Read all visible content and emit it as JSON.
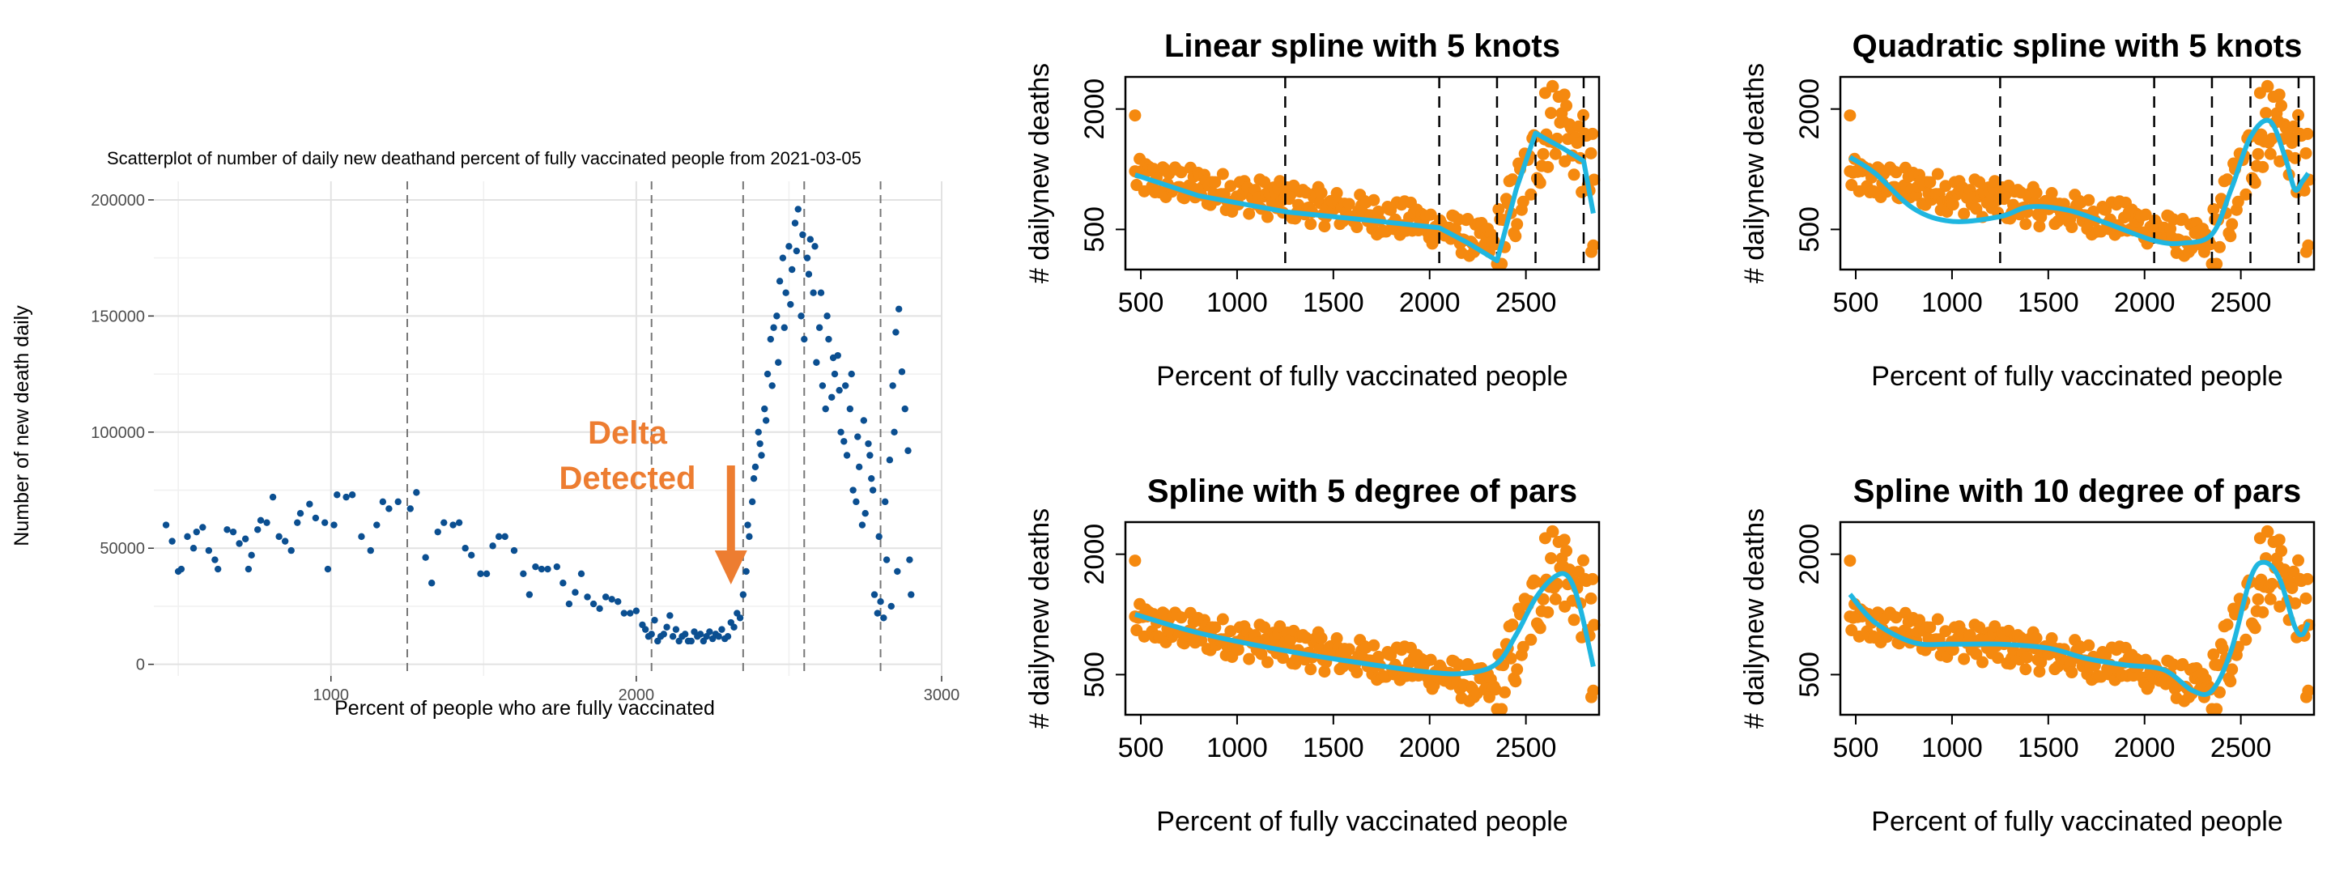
{
  "colors": {
    "scatter_point": "#0b4f91",
    "spline_point": "#f5890f",
    "spline_curve": "#1fb6e0",
    "annotation": "#ed7d31",
    "grid_major": "#e2e2e2",
    "grid_minor": "#f0f0f0",
    "knot_line": "#777777"
  },
  "annotation": {
    "line1": "Delta",
    "line2": "Detected",
    "arrow_x": 2310
  },
  "chart_data": [
    {
      "id": "scatter",
      "type": "scatter",
      "title": "Scatterplot of number of daily new deathand percent of  fully vaccinated people from 2021-03-05",
      "xlabel": "Percent of people who are fully vaccinated",
      "ylabel": "Number of new death daily",
      "xlim": [
        420,
        3000
      ],
      "ylim": [
        -5000,
        208000
      ],
      "xticks": [
        1000,
        2000,
        3000
      ],
      "xtick_labels": [
        "1000",
        "2000",
        "3000"
      ],
      "yticks": [
        0,
        50000,
        100000,
        150000,
        200000
      ],
      "ytick_labels": [
        "0",
        "50000",
        "100000",
        "150000",
        "200000"
      ],
      "grid": true,
      "knots": [
        1250,
        2050,
        2350,
        2550,
        2800
      ],
      "points": [
        [
          460,
          60000
        ],
        [
          480,
          53000
        ],
        [
          500,
          40000
        ],
        [
          510,
          41000
        ],
        [
          530,
          55000
        ],
        [
          550,
          50000
        ],
        [
          560,
          57000
        ],
        [
          580,
          59000
        ],
        [
          600,
          49000
        ],
        [
          620,
          45000
        ],
        [
          630,
          41000
        ],
        [
          660,
          58000
        ],
        [
          680,
          57000
        ],
        [
          700,
          52000
        ],
        [
          720,
          54000
        ],
        [
          730,
          41000
        ],
        [
          740,
          47000
        ],
        [
          760,
          58000
        ],
        [
          770,
          62000
        ],
        [
          790,
          61000
        ],
        [
          810,
          72000
        ],
        [
          830,
          55000
        ],
        [
          850,
          53000
        ],
        [
          870,
          49000
        ],
        [
          890,
          61000
        ],
        [
          900,
          65000
        ],
        [
          930,
          69000
        ],
        [
          950,
          63000
        ],
        [
          980,
          61000
        ],
        [
          990,
          41000
        ],
        [
          1010,
          60000
        ],
        [
          1020,
          73000
        ],
        [
          1050,
          72000
        ],
        [
          1070,
          73000
        ],
        [
          1100,
          55000
        ],
        [
          1130,
          49000
        ],
        [
          1150,
          60000
        ],
        [
          1170,
          70000
        ],
        [
          1190,
          67000
        ],
        [
          1220,
          70000
        ],
        [
          1260,
          67000
        ],
        [
          1280,
          74000
        ],
        [
          1310,
          46000
        ],
        [
          1330,
          35000
        ],
        [
          1350,
          57000
        ],
        [
          1370,
          61000
        ],
        [
          1400,
          60000
        ],
        [
          1420,
          61000
        ],
        [
          1440,
          50000
        ],
        [
          1460,
          47000
        ],
        [
          1490,
          39000
        ],
        [
          1510,
          39000
        ],
        [
          1530,
          51000
        ],
        [
          1550,
          55000
        ],
        [
          1570,
          55000
        ],
        [
          1600,
          49000
        ],
        [
          1630,
          39000
        ],
        [
          1650,
          30000
        ],
        [
          1670,
          42000
        ],
        [
          1690,
          41000
        ],
        [
          1710,
          41000
        ],
        [
          1740,
          42000
        ],
        [
          1760,
          35000
        ],
        [
          1780,
          26000
        ],
        [
          1800,
          31000
        ],
        [
          1820,
          39000
        ],
        [
          1840,
          29000
        ],
        [
          1860,
          26000
        ],
        [
          1880,
          24000
        ],
        [
          1900,
          29000
        ],
        [
          1920,
          28000
        ],
        [
          1940,
          27000
        ],
        [
          1960,
          22000
        ],
        [
          1980,
          22000
        ],
        [
          2000,
          23000
        ],
        [
          2020,
          17000
        ],
        [
          2030,
          15000
        ],
        [
          2040,
          12000
        ],
        [
          2050,
          13000
        ],
        [
          2060,
          19000
        ],
        [
          2070,
          10000
        ],
        [
          2080,
          12000
        ],
        [
          2090,
          13000
        ],
        [
          2100,
          16000
        ],
        [
          2110,
          21000
        ],
        [
          2120,
          12000
        ],
        [
          2130,
          15000
        ],
        [
          2140,
          10000
        ],
        [
          2150,
          12000
        ],
        [
          2160,
          13000
        ],
        [
          2170,
          10000
        ],
        [
          2180,
          10000
        ],
        [
          2190,
          14000
        ],
        [
          2200,
          12000
        ],
        [
          2210,
          13000
        ],
        [
          2220,
          10000
        ],
        [
          2230,
          12000
        ],
        [
          2240,
          14000
        ],
        [
          2250,
          11000
        ],
        [
          2260,
          13000
        ],
        [
          2270,
          12000
        ],
        [
          2280,
          15000
        ],
        [
          2290,
          11000
        ],
        [
          2300,
          12000
        ],
        [
          2310,
          18000
        ],
        [
          2320,
          16000
        ],
        [
          2330,
          22000
        ],
        [
          2340,
          20000
        ],
        [
          2350,
          30000
        ],
        [
          2360,
          40000
        ],
        [
          2370,
          55000
        ],
        [
          2380,
          70000
        ],
        [
          2390,
          85000
        ],
        [
          2400,
          100000
        ],
        [
          2410,
          90000
        ],
        [
          2420,
          110000
        ],
        [
          2430,
          125000
        ],
        [
          2440,
          140000
        ],
        [
          2450,
          145000
        ],
        [
          2460,
          150000
        ],
        [
          2470,
          165000
        ],
        [
          2480,
          175000
        ],
        [
          2490,
          160000
        ],
        [
          2500,
          180000
        ],
        [
          2510,
          170000
        ],
        [
          2520,
          190000
        ],
        [
          2530,
          196000
        ],
        [
          2540,
          150000
        ],
        [
          2550,
          140000
        ],
        [
          2560,
          175000
        ],
        [
          2570,
          183000
        ],
        [
          2580,
          160000
        ],
        [
          2590,
          130000
        ],
        [
          2600,
          145000
        ],
        [
          2610,
          120000
        ],
        [
          2620,
          110000
        ],
        [
          2630,
          140000
        ],
        [
          2640,
          115000
        ],
        [
          2650,
          125000
        ],
        [
          2660,
          133000
        ],
        [
          2670,
          100000
        ],
        [
          2680,
          96000
        ],
        [
          2690,
          90000
        ],
        [
          2700,
          110000
        ],
        [
          2710,
          75000
        ],
        [
          2720,
          70000
        ],
        [
          2730,
          85000
        ],
        [
          2740,
          60000
        ],
        [
          2750,
          65000
        ],
        [
          2760,
          95000
        ],
        [
          2770,
          80000
        ],
        [
          2780,
          30000
        ],
        [
          2790,
          22000
        ],
        [
          2800,
          27000
        ],
        [
          2810,
          20000
        ],
        [
          2820,
          45000
        ],
        [
          2830,
          88000
        ],
        [
          2840,
          120000
        ],
        [
          2850,
          143000
        ],
        [
          2860,
          153000
        ],
        [
          2870,
          126000
        ],
        [
          2880,
          110000
        ],
        [
          2890,
          92000
        ],
        [
          2895,
          45000
        ],
        [
          2900,
          30000
        ],
        [
          2855,
          40000
        ],
        [
          2835,
          25000
        ],
        [
          2815,
          70000
        ],
        [
          2845,
          100000
        ],
        [
          2795,
          55000
        ],
        [
          2775,
          75000
        ],
        [
          2765,
          90000
        ],
        [
          2745,
          105000
        ],
        [
          2725,
          98000
        ],
        [
          2705,
          125000
        ],
        [
          2685,
          120000
        ],
        [
          2665,
          118000
        ],
        [
          2645,
          132000
        ],
        [
          2625,
          150000
        ],
        [
          2605,
          160000
        ],
        [
          2585,
          180000
        ],
        [
          2565,
          168000
        ],
        [
          2545,
          185000
        ],
        [
          2525,
          178000
        ],
        [
          2505,
          155000
        ],
        [
          2485,
          145000
        ],
        [
          2465,
          130000
        ],
        [
          2445,
          120000
        ],
        [
          2425,
          105000
        ],
        [
          2405,
          95000
        ],
        [
          2385,
          80000
        ],
        [
          2365,
          60000
        ]
      ]
    },
    {
      "id": "linear5",
      "type": "scatter",
      "title": "Linear spline with 5 knots",
      "xlabel": "Percent of fully vaccinated people",
      "ylabel": "# dailynew deaths",
      "xlim": [
        420,
        2880
      ],
      "ylim": [
        0,
        2400
      ],
      "xticks": [
        500,
        1000,
        1500,
        2000,
        2500
      ],
      "xtick_labels": [
        "500",
        "1000",
        "1500",
        "2000",
        "2500"
      ],
      "yticks": [
        500,
        2000
      ],
      "ytick_labels": [
        "500",
        "2000"
      ],
      "knots": [
        1250,
        2050,
        2350,
        2550,
        2800
      ],
      "curve": [
        [
          470,
          1180
        ],
        [
          800,
          920
        ],
        [
          1250,
          720
        ],
        [
          1700,
          610
        ],
        [
          2050,
          520
        ],
        [
          2200,
          330
        ],
        [
          2350,
          110
        ],
        [
          2450,
          1000
        ],
        [
          2550,
          1700
        ],
        [
          2700,
          1500
        ],
        [
          2800,
          1350
        ],
        [
          2850,
          700
        ]
      ]
    },
    {
      "id": "quad5",
      "type": "scatter",
      "title": "Quadratic spline with 5 knots",
      "xlabel": "Percent of fully vaccinated people",
      "ylabel": "# dailynew deaths",
      "xlim": [
        420,
        2880
      ],
      "ylim": [
        0,
        2400
      ],
      "xticks": [
        500,
        1000,
        1500,
        2000,
        2500
      ],
      "xtick_labels": [
        "500",
        "1000",
        "1500",
        "2000",
        "2500"
      ],
      "yticks": [
        500,
        2000
      ],
      "ytick_labels": [
        "500",
        "2000"
      ],
      "knots": [
        1250,
        2050,
        2350,
        2550,
        2800
      ],
      "curve": [
        [
          470,
          1400
        ],
        [
          600,
          1200
        ],
        [
          800,
          760
        ],
        [
          1000,
          600
        ],
        [
          1250,
          660
        ],
        [
          1400,
          780
        ],
        [
          1600,
          740
        ],
        [
          1800,
          580
        ],
        [
          2050,
          360
        ],
        [
          2200,
          330
        ],
        [
          2350,
          440
        ],
        [
          2450,
          1000
        ],
        [
          2550,
          1650
        ],
        [
          2650,
          1850
        ],
        [
          2730,
          1400
        ],
        [
          2780,
          1000
        ],
        [
          2820,
          1100
        ],
        [
          2850,
          1200
        ]
      ]
    },
    {
      "id": "df5",
      "type": "scatter",
      "title": "Spline with 5 degree of pars",
      "xlabel": "Percent of fully vaccinated people",
      "ylabel": "# dailynew deaths",
      "xlim": [
        420,
        2880
      ],
      "ylim": [
        0,
        2400
      ],
      "xticks": [
        500,
        1000,
        1500,
        2000,
        2500
      ],
      "xtick_labels": [
        "500",
        "1000",
        "1500",
        "2000",
        "2500"
      ],
      "yticks": [
        500,
        2000
      ],
      "ytick_labels": [
        "500",
        "2000"
      ],
      "knots": [],
      "curve": [
        [
          470,
          1250
        ],
        [
          800,
          1020
        ],
        [
          1200,
          820
        ],
        [
          1600,
          660
        ],
        [
          2000,
          530
        ],
        [
          2200,
          520
        ],
        [
          2350,
          640
        ],
        [
          2450,
          1000
        ],
        [
          2550,
          1450
        ],
        [
          2650,
          1720
        ],
        [
          2720,
          1720
        ],
        [
          2780,
          1350
        ],
        [
          2850,
          600
        ]
      ]
    },
    {
      "id": "df10",
      "type": "scatter",
      "title": "Spline with 10 degree of pars",
      "xlabel": "Percent of fully vaccinated people",
      "ylabel": "# dailynew deaths",
      "xlim": [
        420,
        2880
      ],
      "ylim": [
        0,
        2400
      ],
      "xticks": [
        500,
        1000,
        1500,
        2000,
        2500
      ],
      "xtick_labels": [
        "500",
        "1000",
        "1500",
        "2000",
        "2500"
      ],
      "yticks": [
        500,
        2000
      ],
      "ytick_labels": [
        "500",
        "2000"
      ],
      "knots": [],
      "curve": [
        [
          470,
          1500
        ],
        [
          600,
          1150
        ],
        [
          800,
          900
        ],
        [
          1000,
          880
        ],
        [
          1250,
          880
        ],
        [
          1500,
          830
        ],
        [
          1700,
          700
        ],
        [
          1900,
          620
        ],
        [
          2100,
          560
        ],
        [
          2250,
          300
        ],
        [
          2350,
          300
        ],
        [
          2450,
          800
        ],
        [
          2550,
          1700
        ],
        [
          2620,
          1900
        ],
        [
          2700,
          1700
        ],
        [
          2780,
          1100
        ],
        [
          2820,
          1000
        ],
        [
          2850,
          1150
        ]
      ]
    }
  ]
}
